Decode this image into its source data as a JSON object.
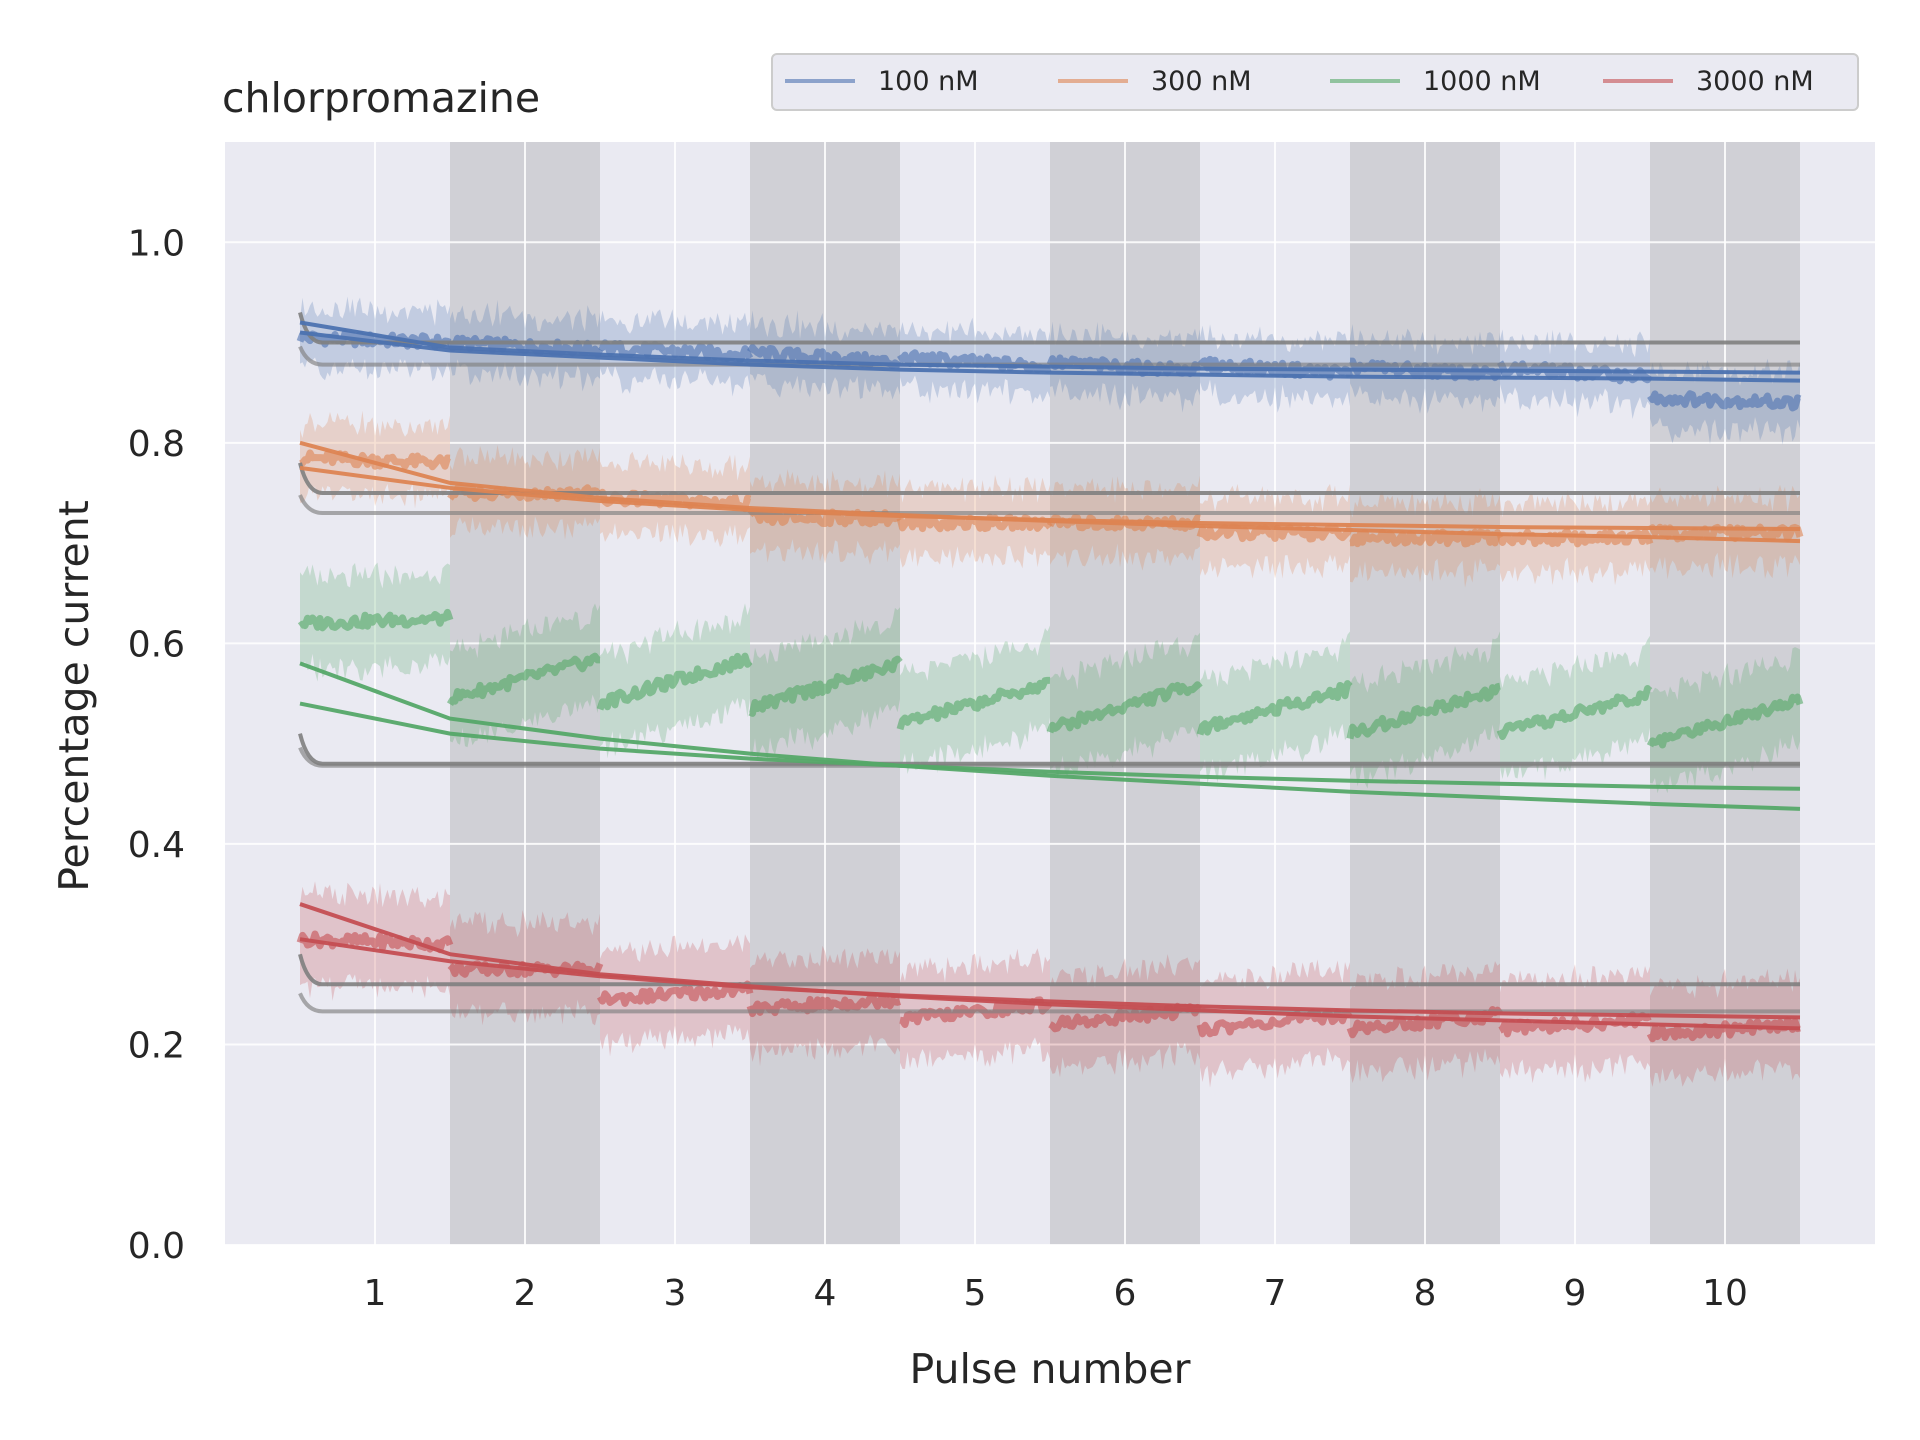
{
  "chart_data": {
    "type": "line",
    "title": "chlorpromazine",
    "xlabel": "Pulse number",
    "ylabel": "Percentage current",
    "xlim": [
      0,
      11
    ],
    "ylim": [
      0.0,
      1.1
    ],
    "x_ticks": [
      1,
      2,
      3,
      4,
      5,
      6,
      7,
      8,
      9,
      10
    ],
    "y_ticks": [
      0.0,
      0.2,
      0.4,
      0.6,
      0.8,
      1.0
    ],
    "x_tick_labels": [
      "1",
      "2",
      "3",
      "4",
      "5",
      "6",
      "7",
      "8",
      "9",
      "10"
    ],
    "y_tick_labels": [
      "0.0",
      "0.2",
      "0.4",
      "0.6",
      "0.8",
      "1.0"
    ],
    "grid": true,
    "legend_position": "top-right",
    "shaded_pulses": [
      2,
      4,
      6,
      8,
      10
    ],
    "colors": {
      "background": "#eaeaf2",
      "grid": "#ffffff",
      "shade": "#d0d0d6",
      "fit_gray": "#808080"
    },
    "series": [
      {
        "name": "100 nM",
        "color": "#4c72b0",
        "pulse_start": [
          0.905,
          0.9,
          0.895,
          0.89,
          0.885,
          0.88,
          0.878,
          0.876,
          0.875,
          0.845
        ],
        "pulse_end": [
          0.9,
          0.893,
          0.888,
          0.88,
          0.876,
          0.872,
          0.87,
          0.868,
          0.866,
          0.84
        ],
        "band": 0.03,
        "fits": [
          [
            0.91,
            0.892,
            0.885,
            0.878,
            0.873,
            0.87,
            0.868,
            0.866,
            0.865,
            0.864,
            0.862
          ],
          [
            0.92,
            0.895,
            0.888,
            0.882,
            0.878,
            0.876,
            0.874,
            0.873,
            0.872,
            0.871,
            0.87
          ]
        ],
        "gray_levels": [
          0.9,
          0.878
        ]
      },
      {
        "name": "300 nM",
        "color": "#dd8452",
        "pulse_start": [
          0.785,
          0.75,
          0.745,
          0.725,
          0.72,
          0.72,
          0.71,
          0.705,
          0.705,
          0.71
        ],
        "pulse_end": [
          0.78,
          0.75,
          0.74,
          0.725,
          0.72,
          0.72,
          0.71,
          0.705,
          0.705,
          0.71
        ],
        "band": 0.035,
        "fits": [
          [
            0.8,
            0.76,
            0.745,
            0.735,
            0.728,
            0.722,
            0.717,
            0.713,
            0.709,
            0.706,
            0.702
          ],
          [
            0.775,
            0.755,
            0.742,
            0.733,
            0.727,
            0.723,
            0.72,
            0.718,
            0.716,
            0.715,
            0.714
          ]
        ],
        "gray_levels": [
          0.75,
          0.73
        ]
      },
      {
        "name": "1000 nM",
        "color": "#55a868",
        "pulse_start": [
          0.62,
          0.545,
          0.54,
          0.535,
          0.52,
          0.515,
          0.515,
          0.51,
          0.51,
          0.5
        ],
        "pulse_end": [
          0.625,
          0.585,
          0.585,
          0.58,
          0.56,
          0.56,
          0.555,
          0.555,
          0.55,
          0.545
        ],
        "band": 0.045,
        "fits": [
          [
            0.58,
            0.525,
            0.505,
            0.49,
            0.478,
            0.468,
            0.46,
            0.452,
            0.446,
            0.44,
            0.435
          ],
          [
            0.54,
            0.51,
            0.495,
            0.485,
            0.478,
            0.472,
            0.467,
            0.463,
            0.46,
            0.457,
            0.455
          ]
        ],
        "gray_levels": [
          0.48,
          0.478
        ]
      },
      {
        "name": "3000 nM",
        "color": "#c44e52",
        "pulse_start": [
          0.305,
          0.275,
          0.245,
          0.235,
          0.225,
          0.22,
          0.215,
          0.215,
          0.215,
          0.21
        ],
        "pulse_end": [
          0.3,
          0.275,
          0.255,
          0.245,
          0.24,
          0.235,
          0.23,
          0.23,
          0.225,
          0.22
        ],
        "band": 0.045,
        "fits": [
          [
            0.34,
            0.29,
            0.27,
            0.258,
            0.248,
            0.24,
            0.234,
            0.228,
            0.224,
            0.22,
            0.216
          ],
          [
            0.305,
            0.283,
            0.268,
            0.257,
            0.249,
            0.243,
            0.238,
            0.234,
            0.231,
            0.229,
            0.227
          ]
        ],
        "gray_levels": [
          0.26,
          0.233
        ]
      }
    ]
  }
}
